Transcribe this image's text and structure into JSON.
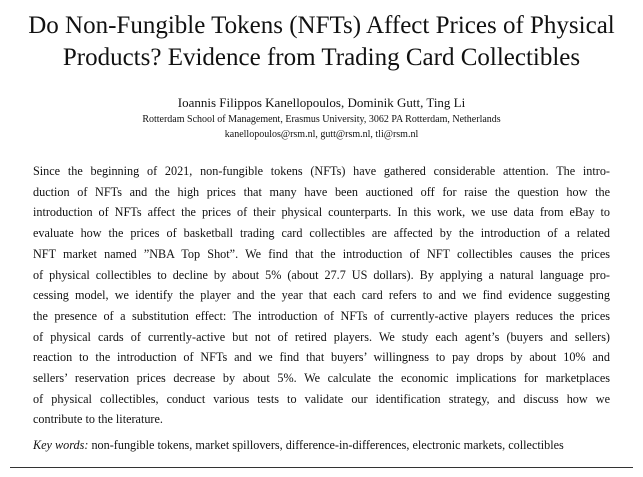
{
  "title": [
    "Do Non-Fungible Tokens (NFTs) Affect Prices of Physical",
    "Products? Evidence from Trading Card Collectibles"
  ],
  "authors": "Ioannis Filippos Kanellopoulos, Dominik Gutt, Ting Li",
  "affiliation": "Rotterdam School of Management, Erasmus University, 3062 PA Rotterdam, Netherlands",
  "emails": "kanellopoulos@rsm.nl, gutt@rsm.nl, tli@rsm.nl",
  "abstract": [
    "Since the beginning of 2021, non-fungible tokens (NFTs) have gathered considerable attention. The intro-",
    "duction of NFTs and the high prices that many have been auctioned off for raise the question how the",
    "introduction of NFTs affect the prices of their physical counterparts. In this work, we use data from eBay to",
    "evaluate how the prices of basketball trading card collectibles are affected by the introduction of a related",
    "NFT market named ”NBA Top Shot”. We find that the introduction of NFT collectibles causes the prices",
    "of physical collectibles to decline by about 5% (about 27.7 US dollars). By applying a natural language pro-",
    "cessing model, we identify the player and the year that each card refers to and we find evidence suggesting",
    "the presence of a substitution effect: The introduction of NFTs of currently-active players reduces the prices",
    "of physical cards of currently-active but not of retired players. We study each agent’s (buyers and sellers)",
    "reaction to the introduction of NFTs and we find that buyers’ willingness to pay drops by about 10% and",
    "sellers’ reservation prices decrease by about 5%. We calculate the economic implications for marketplaces",
    "of physical collectibles, conduct various tests to validate our identification strategy, and discuss how we",
    "contribute to the literature."
  ],
  "keywords_label": "Key words:",
  "keywords": "non-fungible tokens, market spillovers, difference-in-differences, electronic markets, collectibles"
}
